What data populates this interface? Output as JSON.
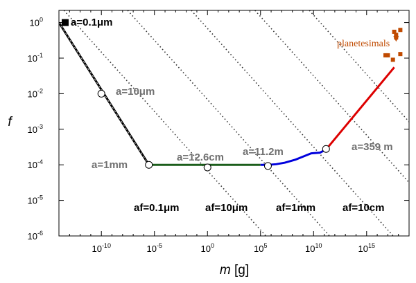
{
  "chart_data": {
    "type": "line",
    "x_scale": "log",
    "y_scale": "log",
    "xlim": [
      1e-14,
      1e+19
    ],
    "ylim": [
      1e-06,
      2.2
    ],
    "grid": false,
    "xlabel": {
      "var": "m",
      "unit": " [g]"
    },
    "ylabel": "f",
    "x_ticks": [
      {
        "base": "10",
        "exp": "-10",
        "value": 1e-10
      },
      {
        "base": "10",
        "exp": "-5",
        "value": 1e-05
      },
      {
        "base": "10",
        "exp": "0",
        "value": 1
      },
      {
        "base": "10",
        "exp": "5",
        "value": 100000.0
      },
      {
        "base": "10",
        "exp": "10",
        "value": 10000000000.0
      },
      {
        "base": "10",
        "exp": "15",
        "value": 1000000000000000.0
      }
    ],
    "y_ticks": [
      {
        "base": "10",
        "exp": "0",
        "value": 1
      },
      {
        "base": "10",
        "exp": "-1",
        "value": 0.1
      },
      {
        "base": "10",
        "exp": "-2",
        "value": 0.01
      },
      {
        "base": "10",
        "exp": "-3",
        "value": 0.001
      },
      {
        "base": "10",
        "exp": "-4",
        "value": 0.0001
      },
      {
        "base": "10",
        "exp": "-5",
        "value": 1e-05
      },
      {
        "base": "10",
        "exp": "-6",
        "value": 1e-06
      }
    ],
    "series": [
      {
        "color": "#000000",
        "dash": "3,3",
        "points": [
          [
            1e-14,
            1.0
          ],
          [
            3e-06,
            0.0001
          ]
        ]
      },
      {
        "color": "#1b5e1b",
        "points": [
          [
            3e-06,
            0.0001
          ],
          [
            100000.0,
            0.0001
          ]
        ]
      },
      {
        "color": "#0000dd",
        "points": [
          [
            100000.0,
            0.0001
          ],
          [
            500000.0,
            0.0001
          ],
          [
            3000000.0,
            0.000104
          ],
          [
            20000000.0,
            0.000115
          ],
          [
            200000000.0,
            0.00014
          ],
          [
            1000000000.0,
            0.00017
          ],
          [
            6000000000.0,
            0.00021
          ],
          [
            40000000000.0,
            0.00022
          ],
          [
            150000000000.0,
            0.00027
          ]
        ]
      },
      {
        "color": "#dd0000",
        "points": [
          [
            150000000000.0,
            0.00027
          ],
          [
            4e+17,
            0.055
          ]
        ]
      }
    ],
    "iso_lines": [
      {
        "label": "af=0.1μm",
        "x_at_ymax": 3e-14
      },
      {
        "label": "af=10μm",
        "x_at_ymax": 3e-08
      },
      {
        "label": "af=1mm",
        "x_at_ymax": 0.03
      },
      {
        "label": "af=10cm",
        "x_at_ymax": 30000.0
      },
      {
        "label": "",
        "x_at_ymax": 4000000000.0
      }
    ],
    "markers": [
      {
        "label": "a=0.1μm",
        "x": 1e-14,
        "y": 1.0,
        "filled": true,
        "label_color": "#000000"
      },
      {
        "label": "a=10μm",
        "x": 1e-10,
        "y": 0.01,
        "filled": false,
        "label_color": "#707070"
      },
      {
        "label": "a=1mm",
        "x": 3e-06,
        "y": 0.0001,
        "filled": false,
        "label_color": "#707070"
      },
      {
        "label": "a=12.6cm",
        "x": 1,
        "y": 8.45e-05,
        "filled": false,
        "label_color": "#707070"
      },
      {
        "label": "a=11.2m",
        "x": 500000.0,
        "y": 9.3e-05,
        "filled": false,
        "label_color": "#707070"
      },
      {
        "label": "a=359 m",
        "x": 150000000000.0,
        "y": 0.00028,
        "filled": false,
        "label_color": "#707070"
      }
    ],
    "planetesimals": {
      "label": "planetesimals",
      "color": "#c04a00",
      "points": [
        [
          4e+17,
          0.55
        ],
        [
          1.5e+18,
          0.62
        ],
        [
          6e+17,
          0.38
        ],
        [
          1e+17,
          0.12
        ],
        [
          6e+16,
          0.12
        ],
        [
          3e+17,
          0.09
        ],
        [
          1.5e+18,
          0.13
        ],
        [
          6e+17,
          0.45
        ]
      ]
    }
  }
}
